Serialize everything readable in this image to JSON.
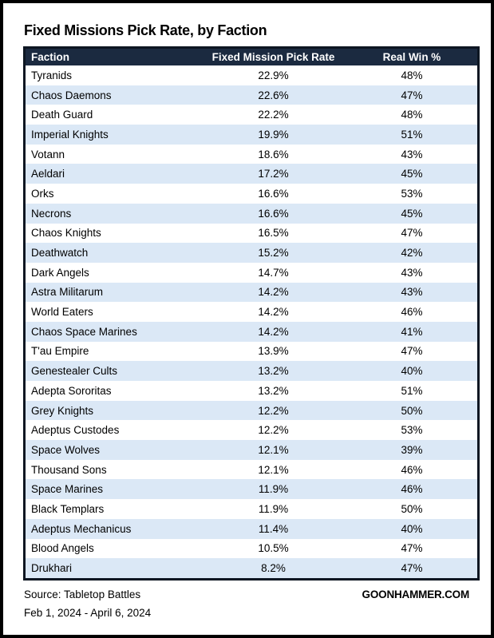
{
  "page": {
    "title": "Fixed Missions Pick Rate, by Faction"
  },
  "chart_data": {
    "type": "table",
    "title": "Fixed Missions Pick Rate, by Faction",
    "columns": [
      "Faction",
      "Fixed Mission Pick Rate",
      "Real Win %"
    ],
    "rows": [
      [
        "Tyranids",
        "22.9%",
        "48%"
      ],
      [
        "Chaos Daemons",
        "22.6%",
        "47%"
      ],
      [
        "Death Guard",
        "22.2%",
        "48%"
      ],
      [
        "Imperial Knights",
        "19.9%",
        "51%"
      ],
      [
        "Votann",
        "18.6%",
        "43%"
      ],
      [
        "Aeldari",
        "17.2%",
        "45%"
      ],
      [
        "Orks",
        "16.6%",
        "53%"
      ],
      [
        "Necrons",
        "16.6%",
        "45%"
      ],
      [
        "Chaos Knights",
        "16.5%",
        "47%"
      ],
      [
        "Deathwatch",
        "15.2%",
        "42%"
      ],
      [
        "Dark Angels",
        "14.7%",
        "43%"
      ],
      [
        "Astra Militarum",
        "14.2%",
        "43%"
      ],
      [
        "World Eaters",
        "14.2%",
        "46%"
      ],
      [
        "Chaos Space Marines",
        "14.2%",
        "41%"
      ],
      [
        "T'au Empire",
        "13.9%",
        "47%"
      ],
      [
        "Genestealer Cults",
        "13.2%",
        "40%"
      ],
      [
        "Adepta Sororitas",
        "13.2%",
        "51%"
      ],
      [
        "Grey Knights",
        "12.2%",
        "50%"
      ],
      [
        "Adeptus Custodes",
        "12.2%",
        "53%"
      ],
      [
        "Space Wolves",
        "12.1%",
        "39%"
      ],
      [
        "Thousand Sons",
        "12.1%",
        "46%"
      ],
      [
        "Space Marines",
        "11.9%",
        "46%"
      ],
      [
        "Black Templars",
        "11.9%",
        "50%"
      ],
      [
        "Adeptus Mechanicus",
        "11.4%",
        "40%"
      ],
      [
        "Blood Angels",
        "10.5%",
        "47%"
      ],
      [
        "Drukhari",
        "8.2%",
        "47%"
      ]
    ],
    "pick_rate_values": [
      22.9,
      22.6,
      22.2,
      19.9,
      18.6,
      17.2,
      16.6,
      16.6,
      16.5,
      15.2,
      14.7,
      14.2,
      14.2,
      14.2,
      13.9,
      13.2,
      13.2,
      12.2,
      12.2,
      12.1,
      12.1,
      11.9,
      11.9,
      11.4,
      10.5,
      8.2
    ],
    "real_win_values": [
      48,
      47,
      48,
      51,
      43,
      45,
      53,
      45,
      47,
      42,
      43,
      43,
      46,
      41,
      47,
      40,
      51,
      50,
      53,
      39,
      46,
      46,
      50,
      40,
      47,
      47
    ]
  },
  "footer": {
    "source": "Source: Tabletop Battles",
    "date_range": "Feb 1, 2024 - April 6, 2024",
    "brand": "GOONHAMMER.COM"
  },
  "colors": {
    "header_bg": "#1b2a40",
    "header_text": "#ffffff",
    "row_bg": "#ffffff",
    "alt_row_bg": "#dbe8f6",
    "frame": "#000000"
  }
}
